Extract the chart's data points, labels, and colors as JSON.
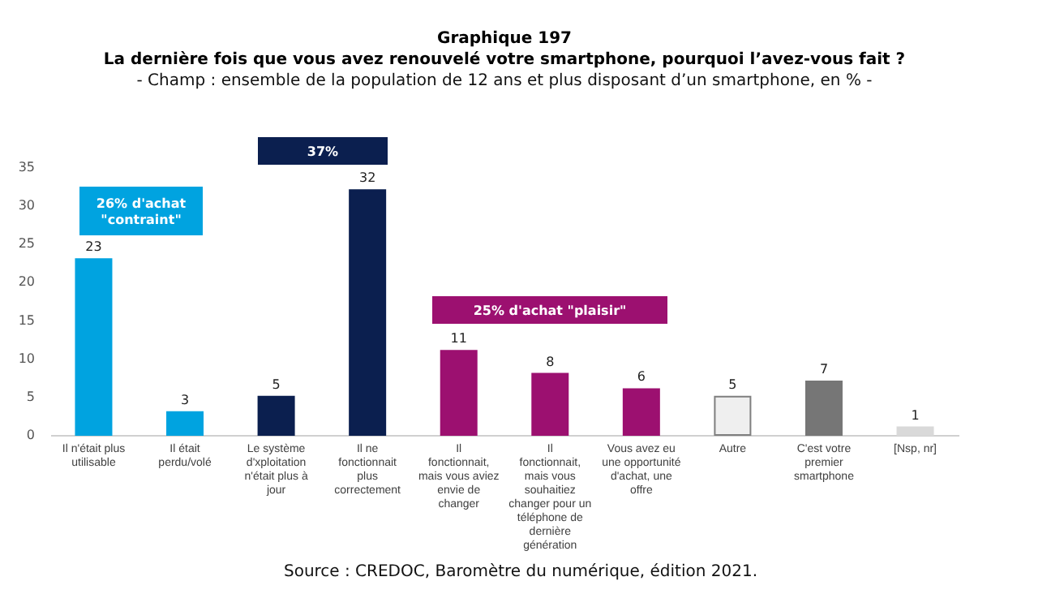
{
  "chart_data": {
    "type": "bar",
    "title": "Graphique 197\nLa dernière fois que vous avez renouvelé votre smartphone, pourquoi l’avez-vous fait ?",
    "subtitle": "- Champ : ensemble de la population de 12 ans et plus disposant d’un smartphone, en % -",
    "categories": [
      "Il n'était plus utilisable",
      "Il était perdu/volé",
      "Le système d'xploitation n'était plus à jour",
      "Il ne fonctionnait plus correctement",
      "Il fonctionnait, mais vous aviez envie de changer",
      "Il fonctionnait, mais vous souhaitiez changer pour un téléphone de dernière génération",
      "Vous avez eu une opportunité d'achat, une offre",
      "Autre",
      "C'est votre premier smartphone",
      "[Nsp, nr]"
    ],
    "values": [
      23,
      3,
      5,
      32,
      11,
      8,
      6,
      5,
      7,
      1
    ],
    "colors": [
      "#00a3e0",
      "#00a3e0",
      "#0b1f4f",
      "#0b1f4f",
      "#9c1070",
      "#9c1070",
      "#9c1070",
      "#efefef",
      "#767676",
      "#d9d9d9"
    ],
    "ylim": [
      0,
      35
    ],
    "yticks": [
      0,
      5,
      10,
      15,
      20,
      25,
      30,
      35
    ],
    "grid": false,
    "legend": false,
    "data_labels": true,
    "annotations": [
      "26% d'achat\n\"contraint\"",
      "37%",
      "25% d'achat \"plaisir\"",
      "Source : CREDOC, Baromètre du numérique, édition 2021."
    ]
  }
}
